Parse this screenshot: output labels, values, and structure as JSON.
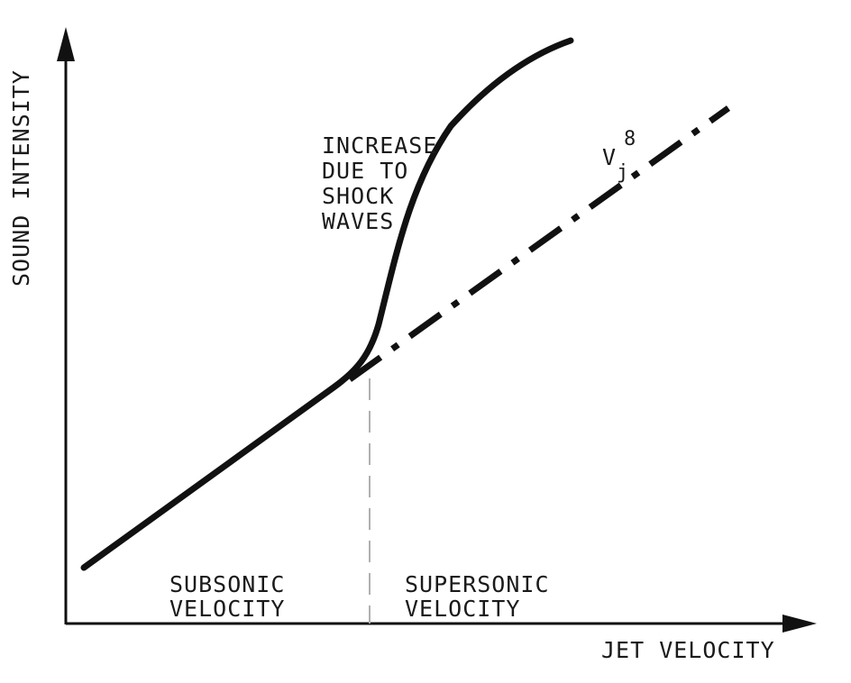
{
  "chart_data": {
    "type": "line",
    "xlabel": "JET VELOCITY",
    "ylabel": "SOUND INTENSITY",
    "grid": false,
    "legend": "none",
    "series": [
      {
        "name": "",
        "style": "solid"
      },
      {
        "name": "",
        "style": "dash-dot"
      }
    ],
    "reference_line": {
      "style": "dashed",
      "color": "#b0b0b0"
    },
    "annotations": {
      "shock_lines": [
        "INCREASE",
        "DUE TO",
        "SHOCK",
        "WAVES"
      ],
      "vj_base": "V",
      "vj_subscript": "j",
      "vj_superscript": "8",
      "subsonic_lines": [
        "SUBSONIC",
        "VELOCITY"
      ],
      "supersonic_lines": [
        "SUPERSONIC",
        "VELOCITY"
      ]
    }
  }
}
